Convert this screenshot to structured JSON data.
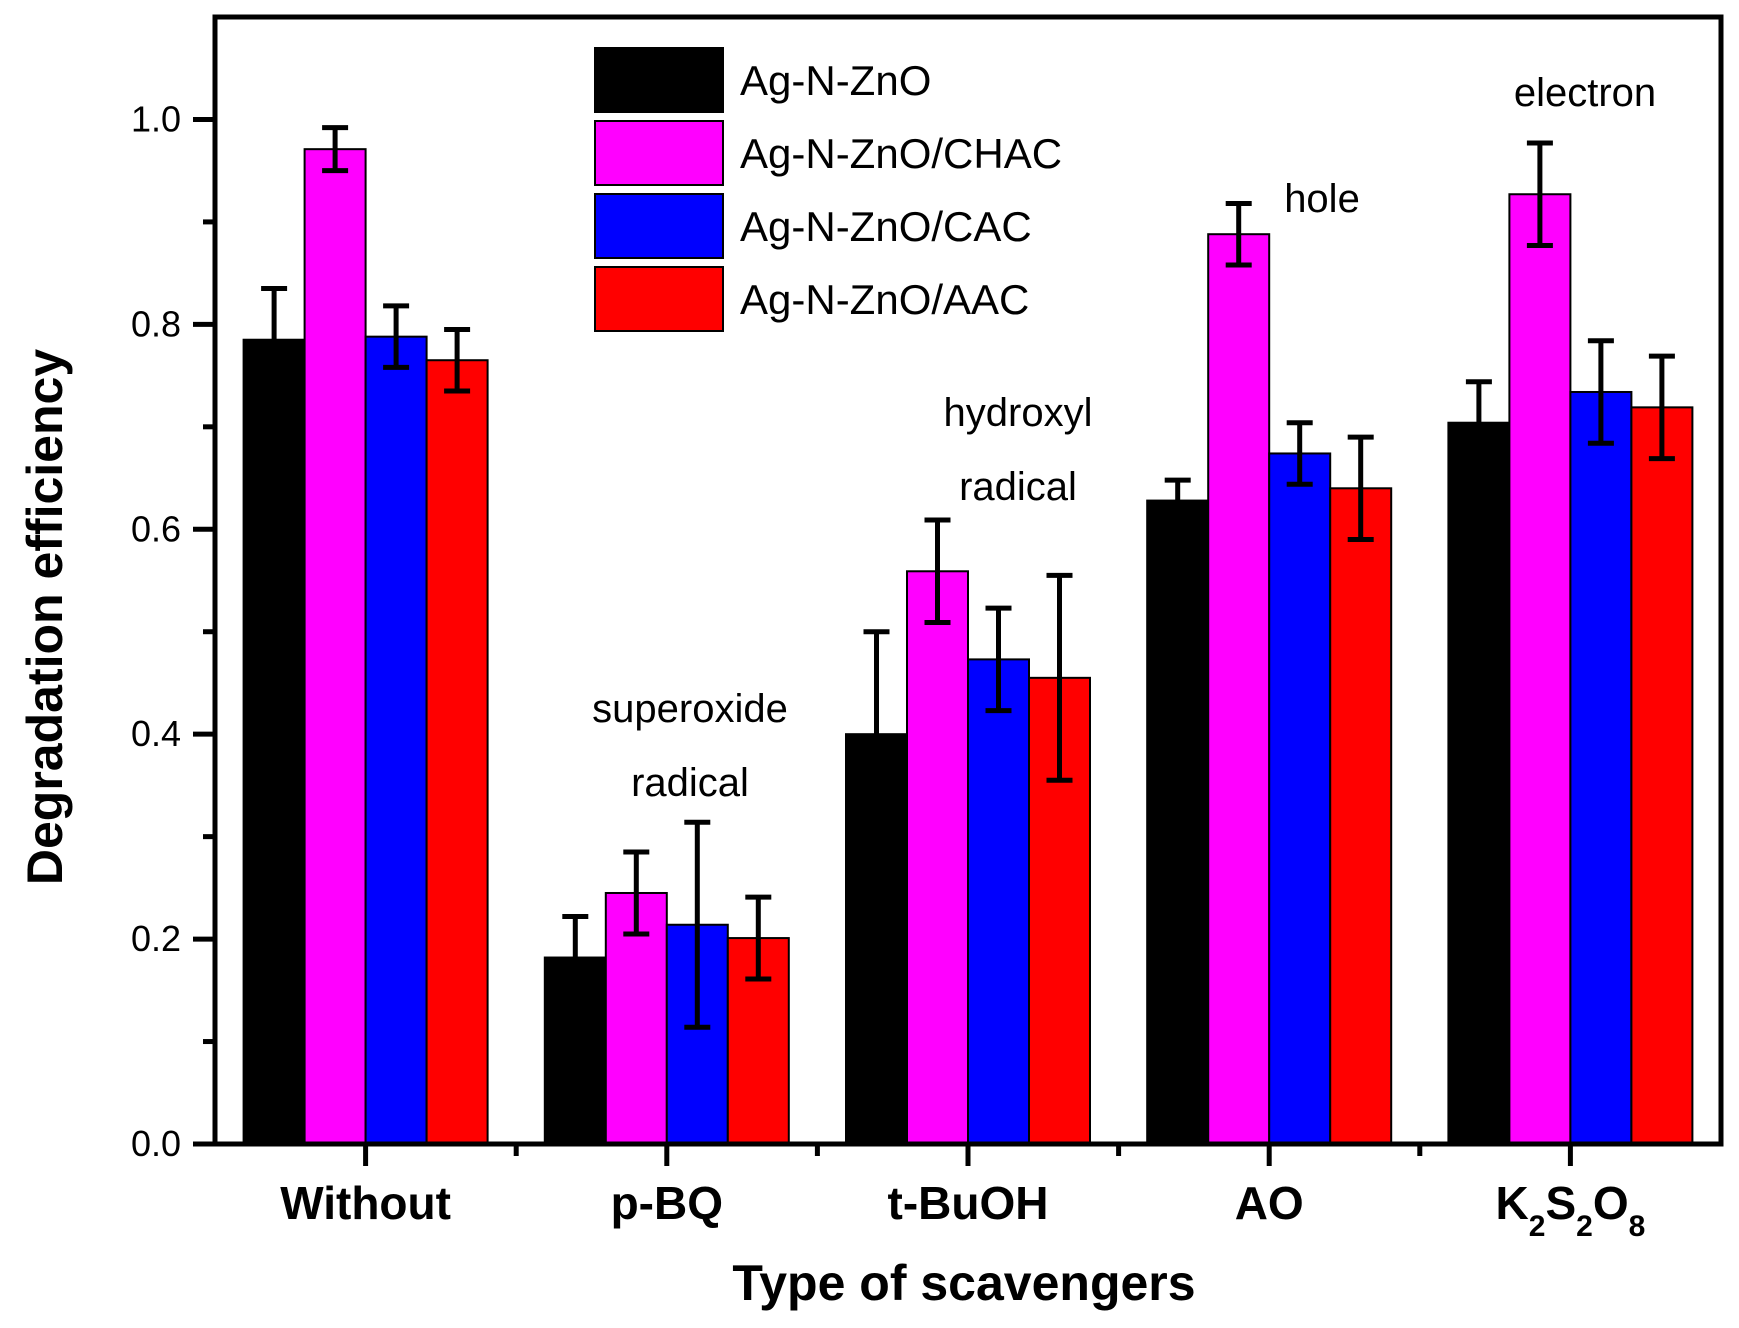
{
  "chart_data": {
    "type": "bar",
    "xlabel": "Type of scavengers",
    "ylabel": "Degradation efficiency",
    "ylim": [
      0,
      1.1
    ],
    "yticks": [
      "0.0",
      "0.2",
      "0.4",
      "0.6",
      "0.8",
      "1.0"
    ],
    "categories": [
      "Without",
      "p-BQ",
      "t-BuOH",
      "AO",
      "K2S2O8"
    ],
    "series": [
      {
        "name": "Ag-N-ZnO",
        "color": "#000000",
        "values": [
          0.785,
          0.182,
          0.4,
          0.628,
          0.704
        ],
        "errors": [
          0.05,
          0.04,
          0.1,
          0.02,
          0.04
        ]
      },
      {
        "name": "Ag-N-ZnO/CHAC",
        "color": "#ff00ff",
        "values": [
          0.971,
          0.245,
          0.559,
          0.888,
          0.927
        ],
        "errors": [
          0.021,
          0.04,
          0.05,
          0.03,
          0.05
        ]
      },
      {
        "name": "Ag-N-ZnO/CAC",
        "color": "#0000ff",
        "values": [
          0.788,
          0.214,
          0.473,
          0.674,
          0.734
        ],
        "errors": [
          0.03,
          0.1,
          0.05,
          0.03,
          0.05
        ]
      },
      {
        "name": "Ag-N-ZnO/AAC",
        "color": "#ff0000",
        "values": [
          0.765,
          0.201,
          0.455,
          0.64,
          0.719
        ],
        "errors": [
          0.03,
          0.04,
          0.1,
          0.05,
          0.05
        ]
      }
    ],
    "annotations": [
      {
        "category": "p-BQ",
        "lines": [
          "superoxide",
          "radical"
        ]
      },
      {
        "category": "t-BuOH",
        "lines": [
          "hydroxyl",
          "radical"
        ]
      },
      {
        "category": "AO",
        "lines": [
          "hole"
        ]
      },
      {
        "category": "K2S2O8",
        "lines": [
          "electron"
        ]
      }
    ]
  }
}
